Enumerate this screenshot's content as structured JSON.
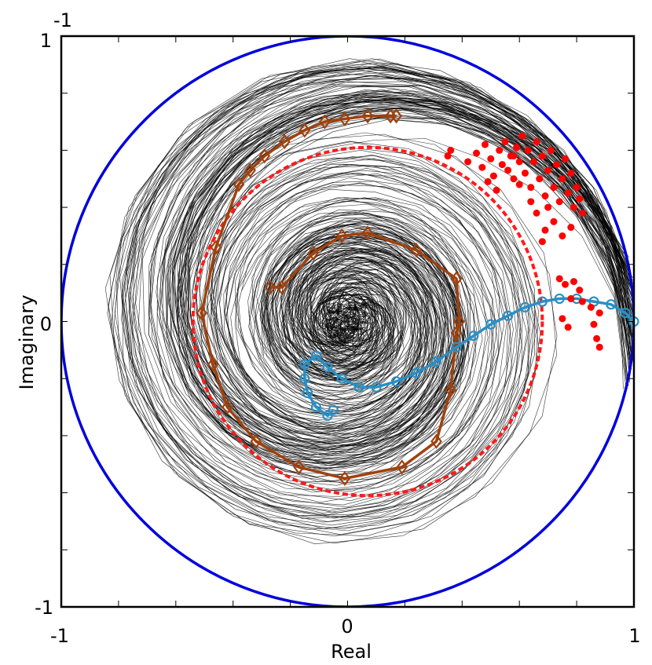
{
  "chart_data": {
    "type": "scatter",
    "title": "",
    "xlabel": "Real",
    "ylabel": "Imaginary",
    "xlim": [
      -1,
      1
    ],
    "ylim": [
      -1,
      1
    ],
    "x_ticks": [
      -1,
      0,
      1
    ],
    "y_ticks": [
      -1,
      0,
      1
    ],
    "x_tick_labels": [
      "-1",
      "0",
      "1"
    ],
    "y_tick_labels": [
      "-1",
      "0",
      "1"
    ],
    "top_corner_label": "-1",
    "grid": false,
    "legend": "none",
    "colors": {
      "unit_circle": "#0000dd",
      "dashed_circle": "#ff1a1a",
      "red_points": "#ff0000",
      "brown_spiral": "#a0410d",
      "teal_path": "#2a8fc4",
      "gray_traces": "#000000"
    },
    "unit_circle": {
      "center": [
        0,
        0
      ],
      "radius": 1.0
    },
    "dashed_circle": {
      "center": [
        0.07,
        0.0
      ],
      "radius": 0.61
    },
    "brown_spiral": [
      [
        0.17,
        0.72
      ],
      [
        0.15,
        0.72
      ],
      [
        0.07,
        0.72
      ],
      [
        -0.01,
        0.71
      ],
      [
        -0.08,
        0.7
      ],
      [
        -0.15,
        0.67
      ],
      [
        -0.22,
        0.63
      ],
      [
        -0.29,
        0.58
      ],
      [
        -0.34,
        0.53
      ],
      [
        -0.38,
        0.48
      ],
      [
        -0.46,
        0.26
      ],
      [
        -0.51,
        0.03
      ],
      [
        -0.47,
        -0.15
      ],
      [
        -0.42,
        -0.3
      ],
      [
        -0.32,
        -0.42
      ],
      [
        -0.17,
        -0.51
      ],
      [
        -0.01,
        -0.55
      ],
      [
        0.19,
        -0.51
      ],
      [
        0.31,
        -0.42
      ],
      [
        0.36,
        -0.24
      ],
      [
        0.38,
        -0.04
      ],
      [
        0.39,
        0.0
      ],
      [
        0.38,
        0.15
      ],
      [
        0.24,
        0.25
      ],
      [
        0.07,
        0.31
      ],
      [
        -0.02,
        0.3
      ],
      [
        -0.12,
        0.24
      ],
      [
        -0.23,
        0.12
      ],
      [
        -0.27,
        0.12
      ]
    ],
    "teal_path": [
      [
        1.0,
        0.0
      ],
      [
        0.97,
        0.03
      ],
      [
        0.92,
        0.06
      ],
      [
        0.86,
        0.07
      ],
      [
        0.8,
        0.08
      ],
      [
        0.74,
        0.08
      ],
      [
        0.68,
        0.07
      ],
      [
        0.62,
        0.05
      ],
      [
        0.56,
        0.02
      ],
      [
        0.5,
        -0.01
      ],
      [
        0.44,
        -0.05
      ],
      [
        0.38,
        -0.09
      ],
      [
        0.31,
        -0.14
      ],
      [
        0.24,
        -0.18
      ],
      [
        0.17,
        -0.21
      ],
      [
        0.1,
        -0.23
      ],
      [
        0.04,
        -0.23
      ],
      [
        -0.02,
        -0.2
      ],
      [
        -0.07,
        -0.16
      ],
      [
        -0.11,
        -0.12
      ],
      [
        -0.15,
        -0.15
      ],
      [
        -0.15,
        -0.2
      ],
      [
        -0.14,
        -0.25
      ],
      [
        -0.11,
        -0.3
      ],
      [
        -0.07,
        -0.33
      ],
      [
        -0.05,
        -0.31
      ]
    ],
    "red_points": [
      [
        0.35,
        0.58
      ],
      [
        0.36,
        0.6
      ],
      [
        0.42,
        0.56
      ],
      [
        0.45,
        0.59
      ],
      [
        0.47,
        0.54
      ],
      [
        0.48,
        0.62
      ],
      [
        0.5,
        0.57
      ],
      [
        0.51,
        0.51
      ],
      [
        0.53,
        0.6
      ],
      [
        0.54,
        0.55
      ],
      [
        0.55,
        0.63
      ],
      [
        0.56,
        0.53
      ],
      [
        0.57,
        0.58
      ],
      [
        0.58,
        0.5
      ],
      [
        0.59,
        0.61
      ],
      [
        0.6,
        0.56
      ],
      [
        0.61,
        0.65
      ],
      [
        0.62,
        0.52
      ],
      [
        0.63,
        0.6
      ],
      [
        0.64,
        0.47
      ],
      [
        0.65,
        0.56
      ],
      [
        0.66,
        0.63
      ],
      [
        0.67,
        0.5
      ],
      [
        0.68,
        0.58
      ],
      [
        0.69,
        0.44
      ],
      [
        0.7,
        0.53
      ],
      [
        0.71,
        0.6
      ],
      [
        0.72,
        0.47
      ],
      [
        0.73,
        0.55
      ],
      [
        0.74,
        0.42
      ],
      [
        0.75,
        0.5
      ],
      [
        0.76,
        0.57
      ],
      [
        0.77,
        0.45
      ],
      [
        0.78,
        0.52
      ],
      [
        0.79,
        0.4
      ],
      [
        0.8,
        0.47
      ],
      [
        0.81,
        0.43
      ],
      [
        0.82,
        0.38
      ],
      [
        0.7,
        0.4
      ],
      [
        0.66,
        0.38
      ],
      [
        0.64,
        0.42
      ],
      [
        0.69,
        0.32
      ],
      [
        0.72,
        0.35
      ],
      [
        0.75,
        0.3
      ],
      [
        0.78,
        0.33
      ],
      [
        0.68,
        0.28
      ],
      [
        0.74,
        0.15
      ],
      [
        0.76,
        0.13
      ],
      [
        0.79,
        0.14
      ],
      [
        0.81,
        0.11
      ],
      [
        0.78,
        0.08
      ],
      [
        0.82,
        0.07
      ],
      [
        0.85,
        0.05
      ],
      [
        0.88,
        0.03
      ],
      [
        0.86,
        -0.01
      ],
      [
        0.77,
        -0.02
      ],
      [
        0.75,
        0.01
      ],
      [
        0.87,
        -0.06
      ],
      [
        0.88,
        -0.09
      ],
      [
        0.58,
        0.58
      ],
      [
        0.6,
        0.48
      ],
      [
        0.52,
        0.46
      ],
      [
        0.49,
        0.49
      ]
    ]
  }
}
